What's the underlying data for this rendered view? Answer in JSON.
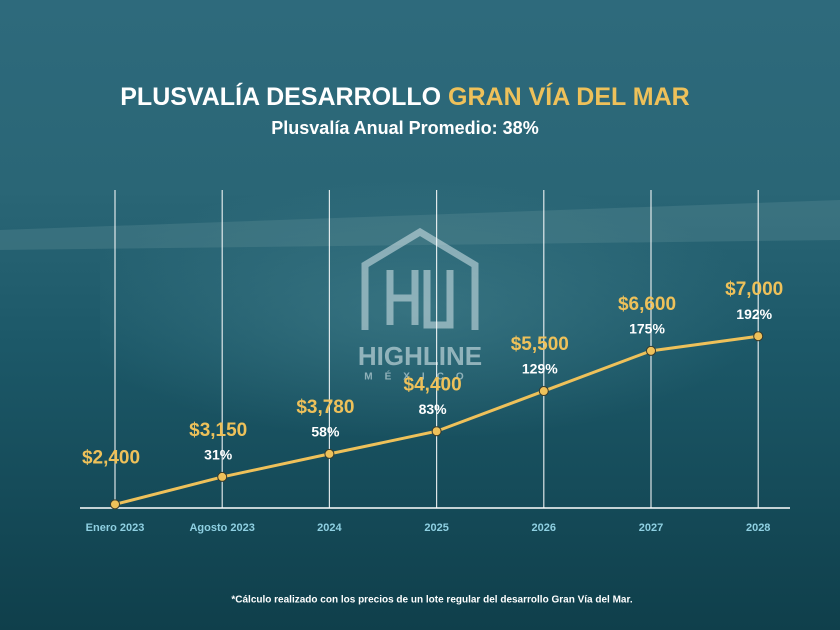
{
  "chart_data": {
    "type": "line",
    "title": "PLUSVALÍA DESARROLLO",
    "title_highlight": "GRAN VÍA DEL MAR",
    "subtitle": "Plusvalía Anual Promedio:  38%",
    "categories": [
      "Enero 2023",
      "Agosto 2023",
      "2024",
      "2025",
      "2026",
      "2027",
      "2028"
    ],
    "values": [
      2400,
      3150,
      3780,
      4400,
      5500,
      6600,
      7000
    ],
    "value_labels": [
      "$2,400",
      "$3,150",
      "$3,780",
      "$4,400",
      "$5,500",
      "$6,600",
      "$7,000"
    ],
    "growth": {
      "values": [
        null,
        31,
        58,
        83,
        129,
        175,
        192
      ],
      "value_labels": [
        null,
        "31%",
        "58%",
        "83%",
        "129%",
        "175%",
        "192%"
      ]
    },
    "color": "#eec15a",
    "ylim": [
      2300,
      11000
    ],
    "footnote": "*Cálculo realizado con los precios de un lote regular del desarrollo Gran Vía del Mar."
  },
  "logo": {
    "name": "HIGHLINE",
    "country": "MÉXICO"
  }
}
